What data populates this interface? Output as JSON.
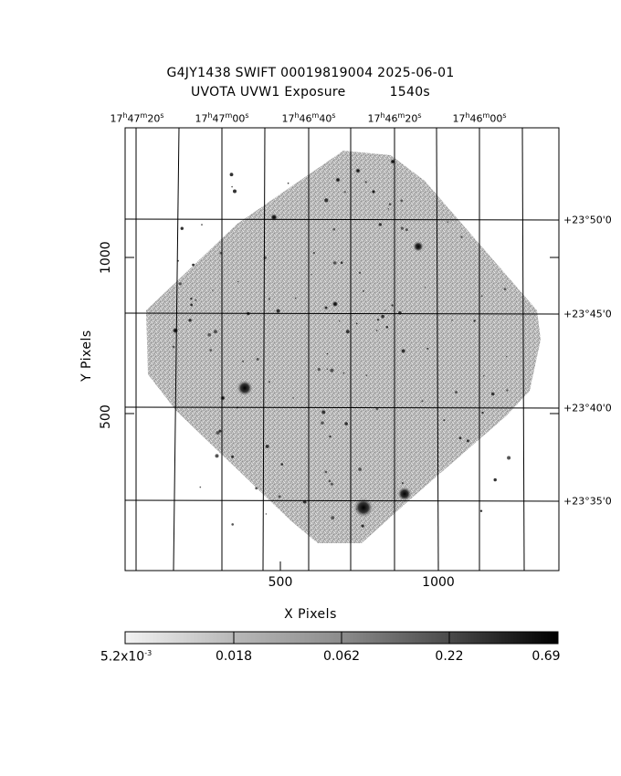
{
  "header": {
    "title_line1": "G4JY1438 SWIFT 00019819004 2025-06-01",
    "title_line2_left": "UVOTA UVW1 Exposure",
    "title_line2_right": "1540s"
  },
  "ra_labels": [
    {
      "h": "17",
      "m": "47",
      "s": "20"
    },
    {
      "h": "17",
      "m": "47",
      "s": "00"
    },
    {
      "h": "17",
      "m": "46",
      "s": "40"
    },
    {
      "h": "17",
      "m": "46",
      "s": "20"
    },
    {
      "h": "17",
      "m": "46",
      "s": "00"
    }
  ],
  "dec_labels": [
    "+23°50'0",
    "+23°45'0",
    "+23°40'0",
    "+23°35'0"
  ],
  "axes": {
    "xlabel": "X Pixels",
    "ylabel": "Y Pixels",
    "xticks": [
      "500",
      "1000"
    ],
    "yticks": [
      "1000",
      "500"
    ]
  },
  "colorbar": {
    "labels": [
      "5.2x10",
      "0.018",
      "0.062",
      "0.22",
      "0.69"
    ],
    "exponent": "-3"
  }
}
